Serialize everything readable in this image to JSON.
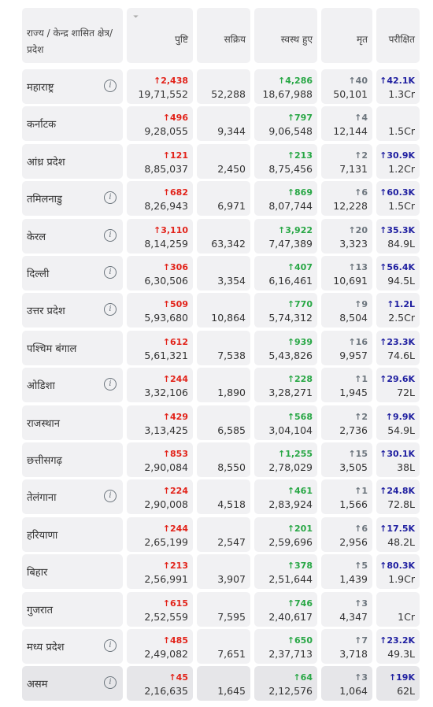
{
  "header": {
    "state": "राज्य / केन्द्र शासित क्षेत्र/प्रदेश",
    "confirmed": "पुष्टि",
    "active": "सक्रिय",
    "recovered": "स्वस्थ हुए",
    "deceased": "मृत",
    "tested": "परीक्षित",
    "sort_icon": "filter-icon"
  },
  "colors": {
    "confirmed": "#e2231a",
    "recovered": "#28a745",
    "deceased": "#6c757d",
    "tested": "#1e1ea0",
    "cell_bg": "#f1f1f3"
  },
  "rows": [
    {
      "state": "महाराष्ट्र",
      "info": true,
      "confirmed_delta": "↑2,438",
      "confirmed": "19,71,552",
      "active": "52,288",
      "recovered_delta": "↑4,286",
      "recovered": "18,67,988",
      "deceased_delta": "↑40",
      "deceased": "50,101",
      "tested_delta": "↑42.1K",
      "tested": "1.3Cr"
    },
    {
      "state": "कर्नाटक",
      "info": false,
      "confirmed_delta": "↑496",
      "confirmed": "9,28,055",
      "active": "9,344",
      "recovered_delta": "↑797",
      "recovered": "9,06,548",
      "deceased_delta": "↑4",
      "deceased": "12,144",
      "tested_delta": "",
      "tested": "1.5Cr"
    },
    {
      "state": "आंध्र प्रदेश",
      "info": false,
      "confirmed_delta": "↑121",
      "confirmed": "8,85,037",
      "active": "2,450",
      "recovered_delta": "↑213",
      "recovered": "8,75,456",
      "deceased_delta": "↑2",
      "deceased": "7,131",
      "tested_delta": "↑30.9K",
      "tested": "1.2Cr"
    },
    {
      "state": "तमिलनाडु",
      "info": true,
      "confirmed_delta": "↑682",
      "confirmed": "8,26,943",
      "active": "6,971",
      "recovered_delta": "↑869",
      "recovered": "8,07,744",
      "deceased_delta": "↑6",
      "deceased": "12,228",
      "tested_delta": "↑60.3K",
      "tested": "1.5Cr"
    },
    {
      "state": "केरल",
      "info": true,
      "confirmed_delta": "↑3,110",
      "confirmed": "8,14,259",
      "active": "63,342",
      "recovered_delta": "↑3,922",
      "recovered": "7,47,389",
      "deceased_delta": "↑20",
      "deceased": "3,323",
      "tested_delta": "↑35.3K",
      "tested": "84.9L"
    },
    {
      "state": "दिल्ली",
      "info": true,
      "confirmed_delta": "↑306",
      "confirmed": "6,30,506",
      "active": "3,354",
      "recovered_delta": "↑407",
      "recovered": "6,16,461",
      "deceased_delta": "↑13",
      "deceased": "10,691",
      "tested_delta": "↑56.4K",
      "tested": "94.5L"
    },
    {
      "state": "उत्तर प्रदेश",
      "info": true,
      "confirmed_delta": "↑509",
      "confirmed": "5,93,680",
      "active": "10,864",
      "recovered_delta": "↑770",
      "recovered": "5,74,312",
      "deceased_delta": "↑9",
      "deceased": "8,504",
      "tested_delta": "↑1.2L",
      "tested": "2.5Cr"
    },
    {
      "state": "पश्चिम बंगाल",
      "info": false,
      "confirmed_delta": "↑612",
      "confirmed": "5,61,321",
      "active": "7,538",
      "recovered_delta": "↑939",
      "recovered": "5,43,826",
      "deceased_delta": "↑16",
      "deceased": "9,957",
      "tested_delta": "↑23.3K",
      "tested": "74.6L"
    },
    {
      "state": "ओडिशा",
      "info": true,
      "confirmed_delta": "↑244",
      "confirmed": "3,32,106",
      "active": "1,890",
      "recovered_delta": "↑228",
      "recovered": "3,28,271",
      "deceased_delta": "↑1",
      "deceased": "1,945",
      "tested_delta": "↑29.6K",
      "tested": "72L"
    },
    {
      "state": "राजस्थान",
      "info": false,
      "confirmed_delta": "↑429",
      "confirmed": "3,13,425",
      "active": "6,585",
      "recovered_delta": "↑568",
      "recovered": "3,04,104",
      "deceased_delta": "↑2",
      "deceased": "2,736",
      "tested_delta": "↑9.9K",
      "tested": "54.9L"
    },
    {
      "state": "छत्तीसगढ़",
      "info": false,
      "confirmed_delta": "↑853",
      "confirmed": "2,90,084",
      "active": "8,550",
      "recovered_delta": "↑1,255",
      "recovered": "2,78,029",
      "deceased_delta": "↑15",
      "deceased": "3,505",
      "tested_delta": "↑30.1K",
      "tested": "38L"
    },
    {
      "state": "तेलंगाना",
      "info": true,
      "confirmed_delta": "↑224",
      "confirmed": "2,90,008",
      "active": "4,518",
      "recovered_delta": "↑461",
      "recovered": "2,83,924",
      "deceased_delta": "↑1",
      "deceased": "1,566",
      "tested_delta": "↑24.8K",
      "tested": "72.8L"
    },
    {
      "state": "हरियाणा",
      "info": false,
      "confirmed_delta": "↑244",
      "confirmed": "2,65,199",
      "active": "2,547",
      "recovered_delta": "↑201",
      "recovered": "2,59,696",
      "deceased_delta": "↑6",
      "deceased": "2,956",
      "tested_delta": "↑17.5K",
      "tested": "48.2L"
    },
    {
      "state": "बिहार",
      "info": false,
      "confirmed_delta": "↑213",
      "confirmed": "2,56,991",
      "active": "3,907",
      "recovered_delta": "↑378",
      "recovered": "2,51,644",
      "deceased_delta": "↑5",
      "deceased": "1,439",
      "tested_delta": "↑80.3K",
      "tested": "1.9Cr"
    },
    {
      "state": "गुजरात",
      "info": false,
      "confirmed_delta": "↑615",
      "confirmed": "2,52,559",
      "active": "7,595",
      "recovered_delta": "↑746",
      "recovered": "2,40,617",
      "deceased_delta": "↑3",
      "deceased": "4,347",
      "tested_delta": "",
      "tested": "1Cr"
    },
    {
      "state": "मध्य प्रदेश",
      "info": true,
      "confirmed_delta": "↑485",
      "confirmed": "2,49,082",
      "active": "7,651",
      "recovered_delta": "↑650",
      "recovered": "2,37,713",
      "deceased_delta": "↑7",
      "deceased": "3,718",
      "tested_delta": "↑23.2K",
      "tested": "49.3L"
    },
    {
      "state": "असम",
      "info": true,
      "confirmed_delta": "↑45",
      "confirmed": "2,16,635",
      "active": "1,645",
      "recovered_delta": "↑64",
      "recovered": "2,12,576",
      "deceased_delta": "↑3",
      "deceased": "1,064",
      "tested_delta": "↑19K",
      "tested": "62L"
    }
  ]
}
